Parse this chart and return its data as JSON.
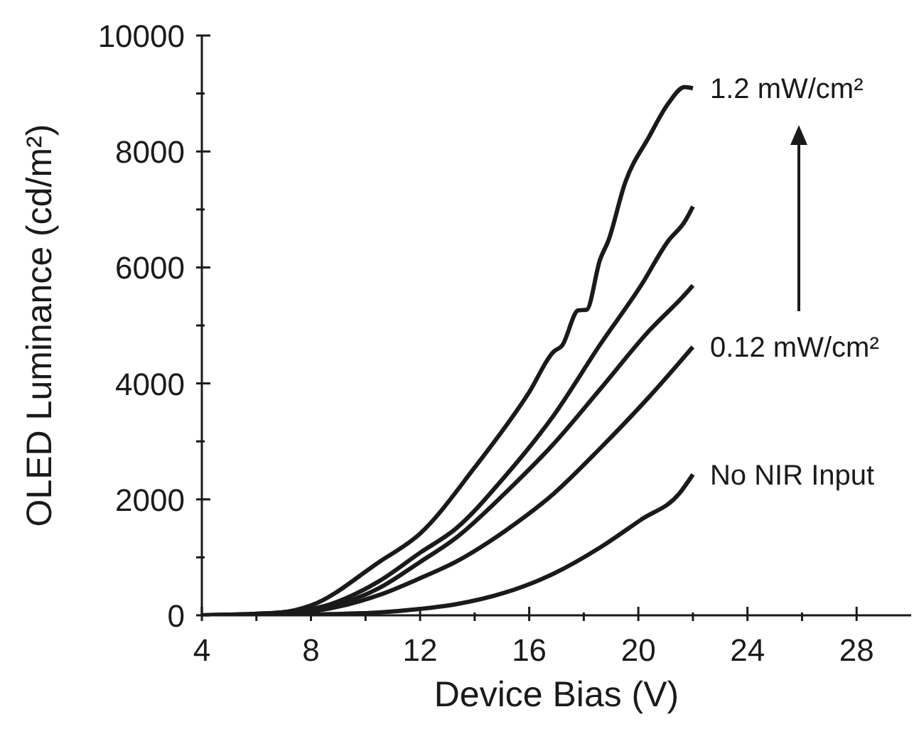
{
  "chart_data": {
    "type": "line",
    "xlabel": "Device Bias (V)",
    "ylabel": "OLED Luminance (cd/m²)",
    "xlim": [
      4,
      30
    ],
    "xticks": [
      4,
      {
        "value": 6,
        "label": null
      },
      8,
      {
        "value": 10,
        "label": null
      },
      12,
      {
        "value": 14,
        "label": null
      },
      16,
      {
        "value": 18,
        "label": null
      },
      20,
      {
        "value": 22,
        "label": null
      },
      24,
      {
        "value": 26,
        "label": null
      },
      28
    ],
    "ylim": [
      0,
      10000
    ],
    "yticks": [
      0,
      {
        "value": 1000,
        "label": null
      },
      2000,
      {
        "value": 3000,
        "label": null
      },
      4000,
      {
        "value": 5000,
        "label": null
      },
      6000,
      {
        "value": 7000,
        "label": null
      },
      8000,
      {
        "value": 9000,
        "label": null
      },
      10000
    ],
    "marker": "none",
    "line_style": "solid",
    "grid": false,
    "legend": false,
    "series": [
      {
        "name": "1.2 mW/cm²",
        "color": "#1a1a1a",
        "x": [
          4,
          6.9,
          8,
          10.5,
          12,
          14,
          16,
          16.9,
          17.2,
          17.8,
          18.1,
          18.6,
          18.9,
          19.5,
          20.4,
          21.1,
          21.7,
          22
        ],
        "values": [
          0,
          50,
          170,
          920,
          1410,
          2550,
          3850,
          4550,
          4650,
          5260,
          5270,
          6140,
          6460,
          7440,
          8260,
          8830,
          9110,
          9090
        ]
      },
      {
        "color": "#1a1a1a",
        "x": [
          4,
          6.9,
          8.7,
          10.5,
          12,
          13.3,
          15.1,
          16.9,
          18.6,
          20.1,
          21.1,
          21.7,
          22
        ],
        "values": [
          0,
          50,
          190,
          590,
          1080,
          1490,
          2390,
          3450,
          4670,
          5690,
          6460,
          6790,
          7050
        ]
      },
      {
        "color": "#1a1a1a",
        "x": [
          4,
          6.9,
          8.7,
          10.5,
          12,
          13.3,
          15.1,
          16.9,
          18.6,
          20.4,
          21.7,
          22
        ],
        "values": [
          0,
          30,
          150,
          470,
          920,
          1330,
          2100,
          2960,
          3900,
          4910,
          5530,
          5690
        ]
      },
      {
        "name": "0.12 mW/cm²",
        "color": "#1a1a1a",
        "x": [
          4,
          6.9,
          8.7,
          10.5,
          12,
          13.3,
          15.1,
          16.9,
          18.6,
          20.4,
          22
        ],
        "values": [
          0,
          30,
          120,
          350,
          640,
          920,
          1450,
          2100,
          2880,
          3770,
          4630
        ]
      },
      {
        "name": "No NIR Input",
        "color": "#1a1a1a",
        "x": [
          4,
          6.9,
          8.7,
          10.5,
          12,
          13.3,
          15.1,
          16.9,
          18.6,
          20.1,
          21.5,
          22
        ],
        "values": [
          0,
          10,
          20,
          50,
          110,
          190,
          390,
          720,
          1170,
          1650,
          2100,
          2430
        ]
      }
    ]
  }
}
